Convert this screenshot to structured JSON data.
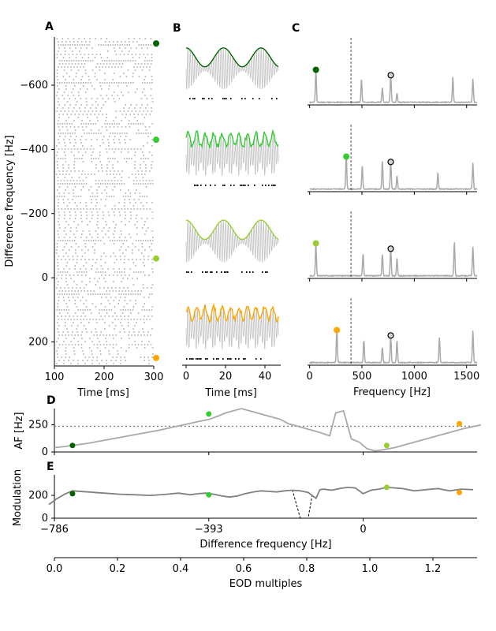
{
  "figure": {
    "panel_letters": [
      "A",
      "B",
      "C",
      "D",
      "E"
    ]
  },
  "chart_data": [
    {
      "panel": "A",
      "type": "scatter",
      "description_type": "raster",
      "xlabel": "Time [ms]",
      "ylabel": "Difference frequency [Hz]",
      "xlim": [
        100,
        300
      ],
      "ylim": [
        -750,
        275
      ],
      "y_inverted": true,
      "xticks": [
        100,
        200,
        300
      ],
      "yticks": [
        -600,
        -400,
        -200,
        0,
        200
      ],
      "ytick_labels": [
        "−600",
        "−400",
        "−200",
        "0",
        "200"
      ],
      "markers": [
        {
          "y": -730,
          "color": "#006400"
        },
        {
          "y": -430,
          "color": "#32cd32"
        },
        {
          "y": -60,
          "color": "#9acd32"
        },
        {
          "y": 250,
          "color": "#ffa500"
        }
      ],
      "raster_color": "#a9a9a9"
    },
    {
      "panel": "B",
      "type": "line",
      "xlabel": "Time [ms]",
      "xlim": [
        -2,
        48
      ],
      "xticks": [
        0,
        20,
        40
      ],
      "rows": [
        {
          "color": "#006400",
          "envelope": "smooth"
        },
        {
          "color": "#32cd32",
          "envelope": "jagged"
        },
        {
          "color": "#9acd32",
          "envelope": "smooth"
        },
        {
          "color": "#ffa500",
          "envelope": "jagged"
        }
      ],
      "signal_color": "#c0c0c0"
    },
    {
      "panel": "C",
      "type": "line",
      "xlabel": "Frequency [Hz]",
      "xlim": [
        -20,
        1600
      ],
      "xticks": [
        0,
        500,
        1000,
        1500
      ],
      "vline_x": 395,
      "peak_marker_x": 775,
      "rows": [
        {
          "filled_x": 60,
          "color": "#006400"
        },
        {
          "filled_x": 350,
          "color": "#32cd32"
        },
        {
          "filled_x": 60,
          "color": "#9acd32"
        },
        {
          "filled_x": 260,
          "color": "#ffa500"
        }
      ],
      "spectrum_color": "#a9a9a9"
    },
    {
      "panel": "D",
      "type": "line",
      "ylabel": "AF [Hz]",
      "ylim": [
        0,
        400
      ],
      "yticks": [
        0,
        250
      ],
      "hline_y": 237,
      "x": [
        -786,
        -760,
        -700,
        -640,
        -580,
        -520,
        -470,
        -420,
        -393,
        -370,
        -350,
        -330,
        -310,
        -290,
        -270,
        -250,
        -230,
        -210,
        -190,
        -170,
        -150,
        -130,
        -110,
        -95,
        -85,
        -70,
        -50,
        -30,
        -10,
        0,
        10,
        30,
        50,
        80,
        110,
        150,
        200,
        250,
        300
      ],
      "y": [
        40,
        50,
        80,
        120,
        160,
        200,
        240,
        280,
        300,
        330,
        360,
        380,
        400,
        380,
        360,
        340,
        320,
        300,
        260,
        240,
        220,
        200,
        180,
        160,
        150,
        360,
        380,
        120,
        90,
        60,
        30,
        10,
        20,
        40,
        70,
        110,
        160,
        210,
        250
      ],
      "points": [
        {
          "x": -740,
          "y": 60,
          "color": "#006400"
        },
        {
          "x": -393,
          "y": 350,
          "color": "#32cd32"
        },
        {
          "x": 60,
          "y": 60,
          "color": "#9acd32"
        },
        {
          "x": 245,
          "y": 260,
          "color": "#ffa500"
        }
      ],
      "line_color": "#a9a9a9"
    },
    {
      "panel": "E",
      "type": "line",
      "xlabel": "Difference frequency [Hz]",
      "ylabel": "Modulation",
      "xlim": [
        -786,
        290
      ],
      "ylim": [
        0,
        380
      ],
      "xticks": [
        -786,
        -393,
        0
      ],
      "xtick_labels": [
        "−786",
        "−393",
        "0"
      ],
      "yticks": [
        0,
        200
      ],
      "x": [
        -800,
        -780,
        -760,
        -740,
        -700,
        -660,
        -620,
        -580,
        -540,
        -500,
        -470,
        -440,
        -420,
        -400,
        -380,
        -360,
        -340,
        -320,
        -300,
        -280,
        -260,
        -240,
        -220,
        -200,
        -180,
        -160,
        -140,
        -130,
        -120,
        -110,
        -100,
        -90,
        -80,
        -60,
        -40,
        -20,
        0,
        20,
        40,
        60,
        80,
        100,
        130,
        160,
        190,
        220,
        250,
        280
      ],
      "y": [
        120,
        170,
        210,
        240,
        230,
        220,
        210,
        205,
        200,
        210,
        220,
        205,
        215,
        220,
        210,
        195,
        185,
        195,
        215,
        230,
        240,
        235,
        230,
        240,
        245,
        240,
        225,
        200,
        175,
        250,
        255,
        250,
        245,
        260,
        270,
        265,
        215,
        245,
        255,
        270,
        265,
        260,
        240,
        250,
        260,
        240,
        255,
        250
      ],
      "dashed_dip_x": [
        -175,
        -140
      ],
      "points": [
        {
          "x": -740,
          "y": 215,
          "color": "#006400"
        },
        {
          "x": -393,
          "y": 205,
          "color": "#32cd32"
        },
        {
          "x": 60,
          "y": 270,
          "color": "#9acd32"
        },
        {
          "x": 245,
          "y": 225,
          "color": "#ffa500"
        }
      ],
      "line_color": "#808080"
    },
    {
      "panel": "bottom-axis",
      "type": "line",
      "xlabel": "EOD multiples",
      "xlim": [
        0,
        1.34
      ],
      "xticks": [
        0.0,
        0.2,
        0.4,
        0.6,
        0.8,
        1.0,
        1.2
      ],
      "xtick_labels": [
        "0.0",
        "0.2",
        "0.4",
        "0.6",
        "0.8",
        "1.0",
        "1.2"
      ]
    }
  ]
}
